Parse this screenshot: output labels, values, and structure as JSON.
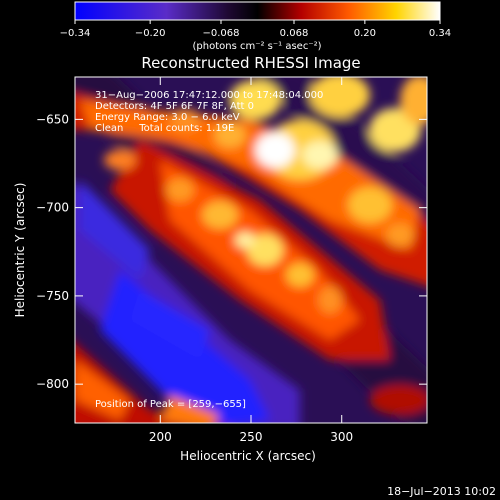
{
  "chart_data": {
    "type": "heatmap",
    "title": "Reconstructed RHESSI Image",
    "xlabel": "Heliocentric X (arcsec)",
    "ylabel": "Heliocentric Y (arcsec)",
    "xlim": [
      153,
      347
    ],
    "ylim": [
      -822,
      -626
    ],
    "x_ticks": [
      200,
      250,
      300
    ],
    "y_ticks": [
      -650,
      -700,
      -750,
      -800
    ],
    "colorbar": {
      "min": -0.34,
      "max": 0.34,
      "tick_values": [
        -0.34,
        -0.2,
        -0.068,
        0.068,
        0.2,
        0.34
      ],
      "tick_labels": [
        "−0.34",
        "−0.20",
        "−0.068",
        "0.068",
        "0.20",
        "0.34"
      ],
      "unit_label": "(photons cm⁻² s⁻¹ asec⁻²)",
      "colors": [
        "#0000ff",
        "#5a2cc8",
        "#1e0832",
        "#000000",
        "#b40000",
        "#ff5a00",
        "#ffd400",
        "#ffffff"
      ]
    },
    "annotations": [
      "31−Aug−2006 17:47:12.000 to 17:48:04.000",
      "Detectors: 4F 5F 6F 7F 8F, Att 0",
      "Energy Range: 3.0 − 6.0 keV",
      "Clean     Total counts: 1.19E",
      "Position of Peak = [259,−655]"
    ],
    "peak": {
      "x": 259,
      "y": -655
    },
    "grid": false
  },
  "footer": {
    "timestamp": "18−Jul−2013 10:02"
  }
}
